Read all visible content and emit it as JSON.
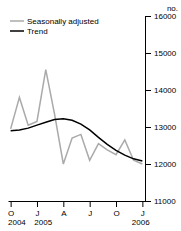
{
  "chart_data": {
    "type": "line",
    "title": "no.",
    "x": [
      0,
      1,
      2,
      3,
      4,
      5,
      6,
      7,
      8,
      9,
      10,
      11,
      12,
      13,
      14,
      15
    ],
    "xlim": [
      -0.3,
      15.3
    ],
    "xticks": [
      {
        "value": 0,
        "label": "O"
      },
      {
        "value": 3,
        "label": "J"
      },
      {
        "value": 6,
        "label": "A"
      },
      {
        "value": 9,
        "label": "J"
      },
      {
        "value": 12,
        "label": "O"
      },
      {
        "value": 15,
        "label": "J"
      }
    ],
    "ylim": [
      11000,
      16000
    ],
    "yticks": [
      11000,
      12000,
      13000,
      14000,
      15000,
      16000
    ],
    "series": [
      {
        "name": "Seasonally adjusted",
        "color": "#aaaaaa",
        "values": [
          12950,
          13800,
          13050,
          13150,
          14550,
          13350,
          12000,
          12700,
          12800,
          12100,
          12550,
          12380,
          12250,
          12650,
          12100,
          12000
        ]
      },
      {
        "name": "Trend",
        "color": "#000000",
        "values": [
          12900,
          12920,
          12970,
          13050,
          13130,
          13200,
          13220,
          13180,
          13080,
          12920,
          12720,
          12530,
          12370,
          12240,
          12140,
          12080
        ]
      }
    ],
    "legend": "upper left",
    "grid": false,
    "annotations": [
      {
        "text": "2004",
        "x": -0.3
      },
      {
        "text": "2005",
        "x": 2.7
      },
      {
        "text": "2006",
        "x": 13.8
      }
    ]
  }
}
